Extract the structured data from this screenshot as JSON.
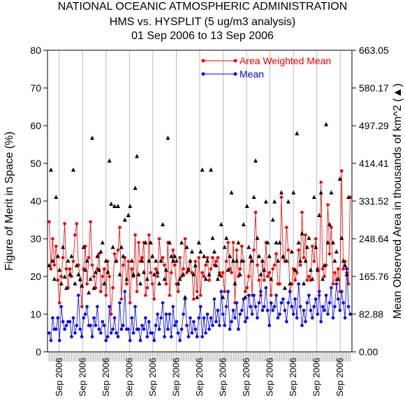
{
  "chart_data": {
    "type": "line",
    "title": [
      "NATIONAL OCEANIC ATMOSPHERIC ADMINISTRATION",
      "HMS vs. HYSPLIT (5 ug/m3 analysis)",
      "01 Sep 2006 to 13 Sep 2006"
    ],
    "ylabel": "Figure of Merit in Space (%)",
    "y2label": "Mean Observed Area in thousands of km^2 (▲)",
    "ylim": [
      0,
      80
    ],
    "yticks": [
      "0",
      "10",
      "20",
      "30",
      "40",
      "50",
      "60",
      "70",
      "80"
    ],
    "y2lim": [
      0,
      663.05
    ],
    "y2ticks": [
      "0.00",
      "82.88",
      "165.76",
      "248.64",
      "331.52",
      "414.41",
      "497.29",
      "580.17",
      "663.05"
    ],
    "xtick_labels": [
      "Sep 2006",
      "Sep 2006",
      "Sep 2006",
      "Sep 2006",
      "Sep 2006",
      "Sep 2006",
      "Sep 2006",
      "Sep 2006",
      "Sep 2006",
      "Sep 2006",
      "Sep 2006",
      "Sep 2006",
      "Sep 2006"
    ],
    "grid": "vertical",
    "legend_position": "top-right",
    "colors": {
      "area_weighted_mean": "#ee0000",
      "mean": "#0000ee",
      "observed_area": "#000000"
    },
    "series": [
      {
        "name": "Area Weighted Mean",
        "values": [
          34.5,
          22,
          30,
          23,
          28,
          19,
          13,
          20,
          25,
          34,
          22,
          17,
          22,
          20,
          24,
          31,
          34,
          23,
          19,
          12,
          22,
          28,
          18,
          25,
          34.5,
          23,
          20,
          17,
          22,
          26,
          16,
          20,
          22,
          15,
          24,
          20,
          10,
          17,
          26,
          24,
          27,
          33,
          14,
          23,
          25,
          18,
          24,
          13,
          22,
          20,
          31,
          16,
          29,
          24,
          25,
          29,
          15,
          17,
          31,
          21,
          18,
          14,
          22,
          20,
          30,
          24,
          25,
          23,
          18,
          29,
          15,
          21,
          27,
          23,
          18,
          16,
          25,
          20,
          22,
          30,
          21,
          22,
          24,
          21,
          14,
          24,
          16,
          25,
          15,
          21,
          20,
          23,
          25,
          19,
          22,
          25,
          23,
          24,
          25,
          21,
          20,
          21,
          16,
          24,
          29,
          22,
          21,
          29,
          13,
          27,
          20,
          22,
          28,
          24,
          16,
          17,
          20,
          25,
          15,
          27,
          37,
          23,
          19,
          15,
          24,
          19,
          29,
          20,
          21,
          15,
          22,
          23,
          26,
          18,
          18,
          41,
          25,
          24,
          33,
          27,
          16,
          18,
          22,
          19,
          21,
          27,
          23,
          37,
          25,
          31,
          19,
          20,
          19,
          28,
          24,
          30,
          22,
          15,
          45,
          22,
          20,
          23,
          39,
          26,
          33,
          18,
          21,
          19,
          22,
          16,
          48,
          22,
          24,
          21,
          18,
          41
        ]
      },
      {
        "name": "Mean",
        "values": [
          5,
          3,
          9,
          6,
          6,
          9,
          3,
          12,
          8,
          6,
          7,
          8,
          8,
          4,
          9,
          5,
          7,
          15,
          6,
          4,
          9,
          10,
          12,
          7,
          7,
          4,
          9,
          7,
          12,
          6,
          5,
          8,
          7,
          3,
          4,
          12,
          5,
          6,
          9,
          5,
          4,
          13,
          6,
          7,
          16,
          6,
          6,
          3,
          9,
          5,
          12,
          6,
          6,
          3,
          7,
          6,
          9,
          4,
          8,
          5,
          5,
          3,
          7,
          10,
          6,
          9,
          13,
          4,
          10,
          6,
          10,
          4,
          12,
          7,
          8,
          5,
          3,
          6,
          10,
          14,
          7,
          4,
          9,
          5,
          8,
          6,
          4,
          9,
          12,
          4,
          9,
          5,
          10,
          6,
          9,
          7,
          14,
          8,
          11,
          7,
          16,
          10,
          7,
          12,
          16,
          6,
          8,
          11,
          9,
          13,
          6,
          10,
          11,
          14,
          8,
          9,
          15,
          12,
          10,
          15,
          12,
          9,
          13,
          16,
          11,
          12,
          17,
          11,
          7,
          13,
          11,
          12,
          15,
          9,
          10,
          13,
          14,
          11,
          8,
          13,
          16,
          12,
          10,
          14,
          9,
          18,
          12,
          7,
          11,
          8,
          13,
          15,
          11,
          9,
          12,
          14,
          10,
          16,
          8,
          12,
          11,
          15,
          10,
          13,
          17,
          9,
          12,
          18,
          14,
          11,
          16,
          13,
          9,
          22,
          12,
          10
        ]
      },
      {
        "name": "Observed Area",
        "values": [
          190,
          400,
          200,
          160,
          340,
          210,
          180,
          150,
          230,
          165,
          140,
          200,
          170,
          210,
          400,
          150,
          190,
          170,
          160,
          145,
          230,
          180,
          200,
          130,
          160,
          470,
          140,
          175,
          210,
          180,
          220,
          240,
          150,
          200,
          175,
          420,
          325,
          230,
          320,
          200,
          320,
          170,
          230,
          210,
          290,
          160,
          300,
          320,
          200,
          170,
          360,
          430,
          170,
          150,
          200,
          175,
          240,
          160,
          200,
          240,
          210,
          170,
          200,
          175,
          150,
          200,
          280,
          160,
          180,
          470,
          240,
          210,
          200,
          210,
          200,
          150,
          160,
          240,
          170,
          120,
          230,
          180,
          200,
          220,
          170,
          190,
          120,
          240,
          220,
          400,
          210,
          160,
          200,
          170,
          400,
          250,
          220,
          190,
          160,
          170,
          280,
          120,
          230,
          250,
          180,
          210,
          350,
          200,
          150,
          200,
          240,
          170,
          200,
          280,
          120,
          320,
          230,
          210,
          200,
          340,
          420,
          250,
          210,
          170,
          200,
          180,
          330,
          240,
          210,
          160,
          290,
          330,
          240,
          200,
          240,
          350,
          210,
          140,
          200,
          330,
          150,
          220,
          350,
          180,
          480,
          240,
          200,
          260,
          150,
          200,
          230,
          250,
          180,
          160,
          340,
          230,
          180,
          300,
          350,
          160,
          190,
          500,
          240,
          280,
          350,
          240,
          200,
          220,
          160,
          380,
          250,
          200,
          190,
          170,
          340
        ]
      }
    ]
  }
}
